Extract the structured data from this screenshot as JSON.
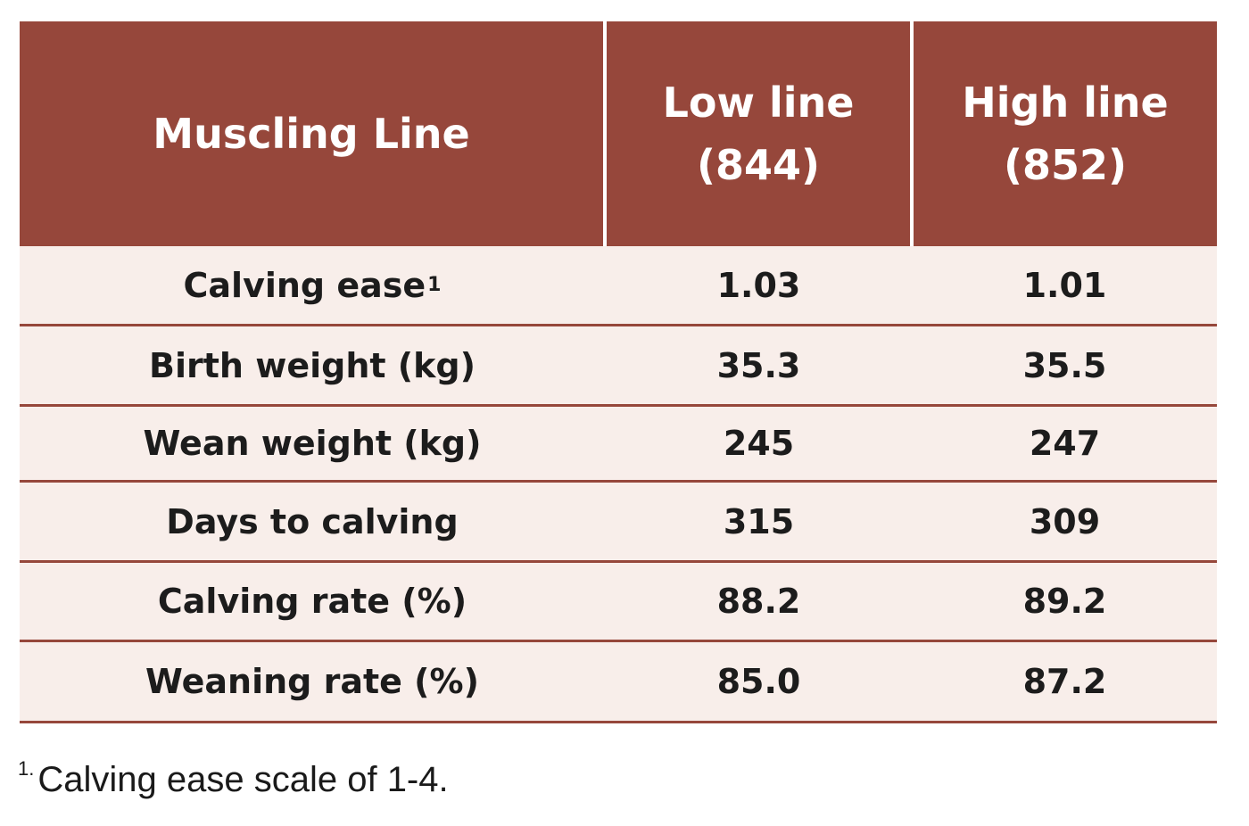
{
  "table": {
    "header": {
      "col1": "Muscling Line",
      "col2_line1": "Low line",
      "col2_line2": "(844)",
      "col3_line1": "High line",
      "col3_line2": "(852)"
    },
    "rows": [
      {
        "label": "Calving ease",
        "sup": "1",
        "low": "1.03",
        "high": "1.01"
      },
      {
        "label": "Birth weight (kg)",
        "low": "35.3",
        "high": "35.5"
      },
      {
        "label": "Wean weight (kg)",
        "low": "245",
        "high": "247"
      },
      {
        "label": "Days to calving",
        "low": "315",
        "high": "309"
      },
      {
        "label": "Calving rate (%)",
        "low": "88.2",
        "high": "89.2"
      },
      {
        "label": "Weaning rate (%)",
        "low": "85.0",
        "high": "87.2"
      }
    ],
    "colors": {
      "header_bg": "#96473b",
      "row_bg": "#f8eeea",
      "rule": "#96473b"
    }
  },
  "footnote": {
    "mark": "1.",
    "text": "Calving ease scale of 1-4."
  }
}
